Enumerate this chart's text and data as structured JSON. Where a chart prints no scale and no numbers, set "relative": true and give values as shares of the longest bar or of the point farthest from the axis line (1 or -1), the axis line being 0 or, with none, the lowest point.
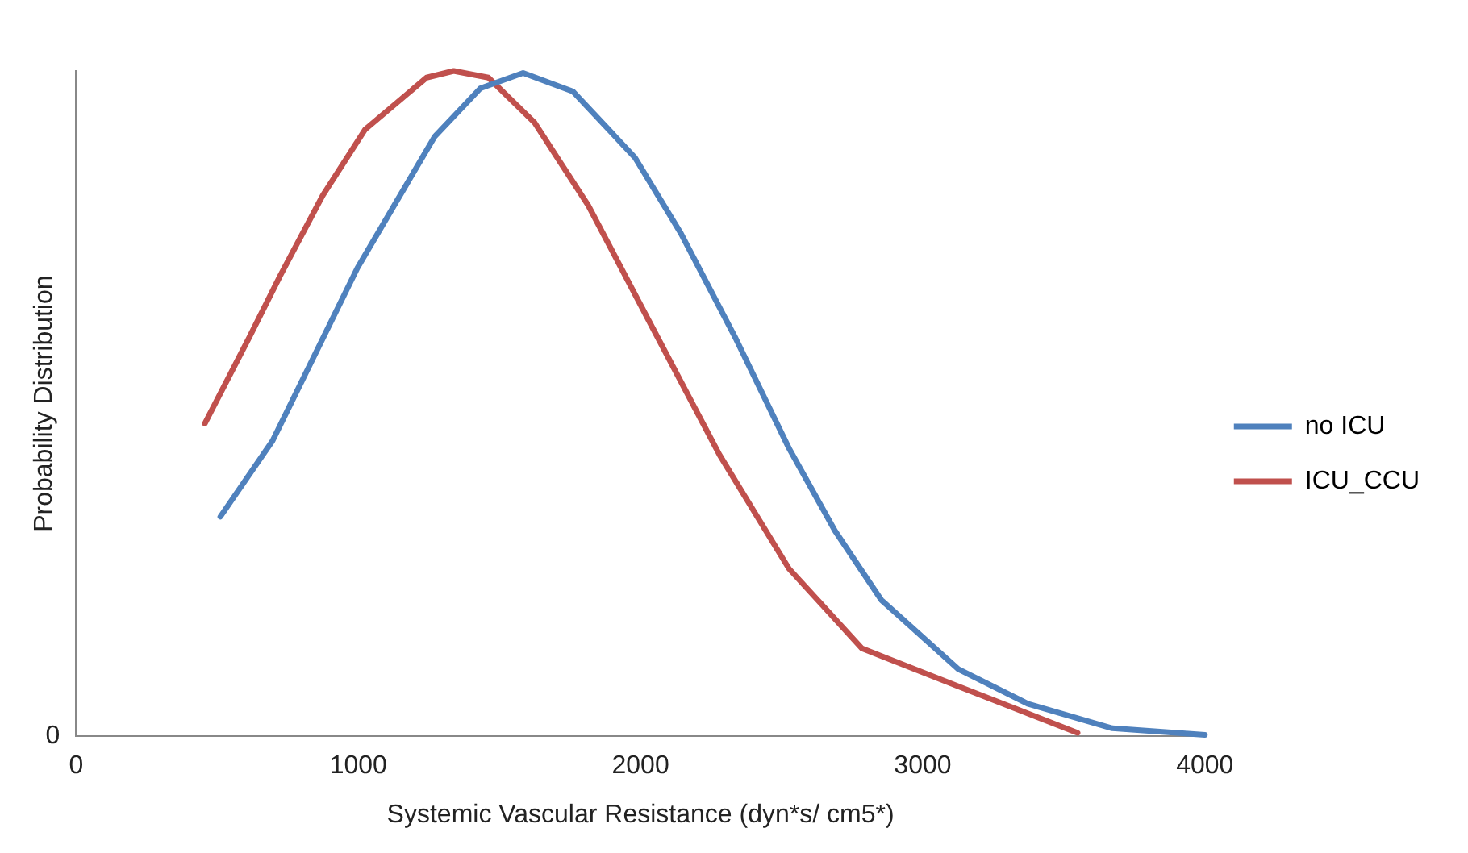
{
  "chart_data": {
    "type": "line",
    "relative": true,
    "xlabel": "Systemic Vascular Resistance (dyn*s/ cm5*)",
    "ylabel": "Probability Distribution",
    "xlim": [
      0,
      4000
    ],
    "xticks": [
      0,
      1000,
      2000,
      3000,
      4000
    ],
    "annotations": [
      "0"
    ],
    "grid": false,
    "legend": "right",
    "marker": "none",
    "line_style": "solid",
    "series": [
      {
        "name": "no ICU",
        "color": "#4f81bd",
        "x": [
          511,
          696,
          997,
          1270,
          1433,
          1584,
          1761,
          1980,
          2143,
          2335,
          2526,
          2689,
          2853,
          3126,
          3372,
          3672,
          4000
        ],
        "values": [
          0.33,
          0.444,
          0.704,
          0.901,
          0.974,
          0.997,
          0.969,
          0.87,
          0.756,
          0.6,
          0.433,
          0.309,
          0.205,
          0.101,
          0.049,
          0.012,
          0.002
        ]
      },
      {
        "name": "ICU_CCU",
        "color": "#c0504d",
        "x": [
          456,
          614,
          724,
          874,
          1024,
          1242,
          1338,
          1461,
          1625,
          1816,
          2034,
          2280,
          2526,
          2785,
          3126,
          3549
        ],
        "values": [
          0.47,
          0.6,
          0.693,
          0.813,
          0.912,
          0.99,
          1,
          0.99,
          0.922,
          0.797,
          0.621,
          0.423,
          0.252,
          0.132,
          0.075,
          0.005
        ]
      }
    ]
  }
}
